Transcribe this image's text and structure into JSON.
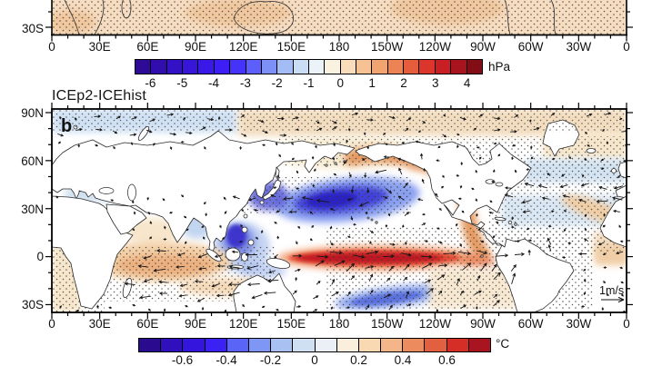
{
  "figure": {
    "panel_a": {
      "visible_y_tick": "30S",
      "x_tick_labels": [
        "0",
        "30E",
        "60E",
        "90E",
        "120E",
        "150E",
        "180",
        "150W",
        "120W",
        "90W",
        "60W",
        "30W",
        "0"
      ],
      "colorbar": {
        "unit": "hPa",
        "tick_labels": [
          "-6",
          "-5",
          "-4",
          "-3",
          "-2",
          "-1",
          "0",
          "1",
          "2",
          "3",
          "4"
        ],
        "cell_colors": [
          "#2f0a96",
          "#320dae",
          "#3511c6",
          "#3715d9",
          "#3a19e8",
          "#3d1ef5",
          "#4633fa",
          "#5c5ffa",
          "#7c90f8",
          "#a2bcf6",
          "#c9def5",
          "#ecf3f8",
          "#faf2e0",
          "#f9ddbb",
          "#f6c294",
          "#f2a470",
          "#ed8352",
          "#e65d3c",
          "#dc352b",
          "#c91f24",
          "#a8141d",
          "#830d15"
        ]
      }
    },
    "panel_b": {
      "title": "ICEp2-ICEhist",
      "panel_letter": "b",
      "y_tick_labels": [
        "90N",
        "60N",
        "30N",
        "0",
        "30S"
      ],
      "x_tick_labels": [
        "0",
        "30E",
        "60E",
        "90E",
        "120E",
        "150E",
        "180",
        "150W",
        "120W",
        "90W",
        "60W",
        "30W",
        "0"
      ],
      "reference_vector_label": "1m/s",
      "colorbar": {
        "unit": "°C",
        "tick_labels": [
          "-0.6",
          "-0.4",
          "-0.2",
          "0",
          "0.2",
          "0.4",
          "0.6"
        ],
        "cell_colors": [
          "#2a0b90",
          "#2f10bc",
          "#3415dd",
          "#3b21f2",
          "#5a64f6",
          "#7e97f4",
          "#a8c1f2",
          "#d0e0f3",
          "#eaf0f5",
          "#f9efdc",
          "#f8d9b2",
          "#f4b588",
          "#ec8c5e",
          "#e25f40",
          "#d42e27",
          "#a81420"
        ]
      }
    }
  },
  "chart_data": [
    {
      "type": "heatmap",
      "panel": "a",
      "description": "Bottom edge of a filled-contour global map (sea-level pressure anomaly, hPa). Visible band (~10S-35S) shows weak positive anomalies of about 0 to +1 hPa with stippling everywhere.",
      "colorbar": {
        "unit": "hPa",
        "ticks": [
          -6,
          -5,
          -4,
          -3,
          -2,
          -1,
          0,
          1,
          2,
          3,
          4
        ],
        "range": [
          -7,
          5
        ]
      },
      "x_ticks": [
        "0",
        "30E",
        "60E",
        "90E",
        "120E",
        "150E",
        "180",
        "150W",
        "120W",
        "90W",
        "60W",
        "30W",
        "0"
      ],
      "y_ticks_visible": [
        "30S"
      ],
      "grid": false
    },
    {
      "type": "heatmap",
      "panel": "b",
      "title": "ICEp2-ICEhist",
      "description": "Global map (90N-35S, 0-360E) of surface temperature anomaly (degC, shading) with wind-anomaly vectors (arrows) and stippling.",
      "colorbar": {
        "unit": "°C",
        "ticks": [
          -0.6,
          -0.4,
          -0.2,
          0,
          0.2,
          0.4,
          0.6
        ],
        "range": [
          -0.8,
          0.8
        ]
      },
      "x_ticks": [
        "0",
        "30E",
        "60E",
        "90E",
        "120E",
        "150E",
        "180",
        "150W",
        "120W",
        "90W",
        "60W",
        "30W",
        "0"
      ],
      "y_ticks": [
        "90N",
        "60N",
        "30N",
        "0",
        "30S"
      ],
      "reference_vector": "1 m/s",
      "anomaly_features": [
        {
          "region": "equatorial central-eastern Pacific (160E-80W, 5N-5S)",
          "anomaly_c": 0.7,
          "sign": "warm"
        },
        {
          "region": "northwest/central North Pacific (140E-160W, 25-45N)",
          "anomaly_c": -0.5,
          "sign": "cold"
        },
        {
          "region": "Gulf of Alaska and North American west coast (horseshoe)",
          "anomaly_c": 0.3,
          "sign": "warm"
        },
        {
          "region": "South China Sea / Maritime Continent",
          "anomaly_c": -0.4,
          "sign": "cold"
        },
        {
          "region": "southwest Pacific (170E-140W, 15-30S)",
          "anomaly_c": -0.3,
          "sign": "cold"
        },
        {
          "region": "tropical south Indian Ocean (5S-20S)",
          "anomaly_c": 0.25,
          "sign": "warm"
        },
        {
          "region": "Arctic and midlatitude North Atlantic",
          "anomaly_c": 0.1,
          "sign": "weak mixed"
        }
      ],
      "vector_pattern": "cyclonic circulation around a deepened North Pacific low; westerly anomalies along the equatorial Pacific; easterly anomalies over the south Indian Ocean"
    }
  ]
}
